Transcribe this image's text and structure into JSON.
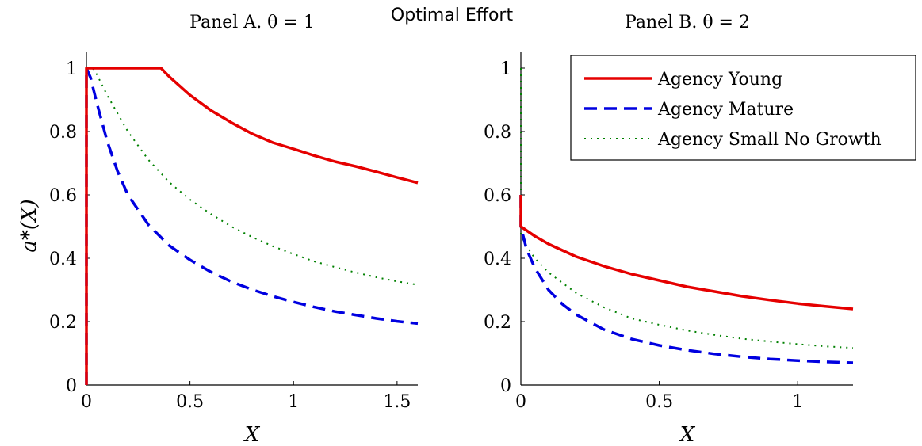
{
  "figure": {
    "title": "Optimal Effort"
  },
  "legend": {
    "entries": [
      {
        "label": "Agency Young",
        "color": "#e50000",
        "style": "solid"
      },
      {
        "label": "Agency Mature",
        "color": "#0000e0",
        "style": "dashed"
      },
      {
        "label": "Agency Small No Growth",
        "color": "#008000",
        "style": "dotted"
      }
    ],
    "placement": "top-right of Panel B"
  },
  "chart_data": [
    {
      "type": "line",
      "title": "Panel A. θ = 1",
      "xlabel": "X",
      "ylabel": "a*(X)",
      "xlim": [
        0,
        1.6
      ],
      "ylim": [
        0,
        1.05
      ],
      "xticks": [
        0,
        0.5,
        1,
        1.5
      ],
      "xtick_labels": [
        "0",
        "0.5",
        "1",
        "1.5"
      ],
      "yticks": [
        0,
        0.2,
        0.4,
        0.6,
        0.8,
        1
      ],
      "ytick_labels": [
        "0",
        "0.2",
        "0.4",
        "0.6",
        "0.8",
        "1"
      ],
      "grid": false,
      "series": [
        {
          "name": "Agency Young",
          "color": "#e50000",
          "style": "solid",
          "x": [
            0,
            0,
            0.36,
            0.4,
            0.5,
            0.6,
            0.7,
            0.8,
            0.9,
            1.0,
            1.1,
            1.2,
            1.3,
            1.4,
            1.5,
            1.6
          ],
          "y": [
            0,
            1,
            1,
            0.973,
            0.915,
            0.867,
            0.828,
            0.793,
            0.765,
            0.745,
            0.724,
            0.705,
            0.69,
            0.673,
            0.655,
            0.638
          ]
        },
        {
          "name": "Agency Mature",
          "color": "#0000e0",
          "style": "dashed",
          "x": [
            0,
            0,
            0.02,
            0.05,
            0.1,
            0.15,
            0.2,
            0.3,
            0.4,
            0.5,
            0.6,
            0.7,
            0.8,
            0.9,
            1.0,
            1.1,
            1.2,
            1.3,
            1.4,
            1.5,
            1.6
          ],
          "y": [
            0,
            1,
            0.97,
            0.89,
            0.77,
            0.675,
            0.6,
            0.505,
            0.44,
            0.395,
            0.357,
            0.326,
            0.301,
            0.28,
            0.262,
            0.246,
            0.232,
            0.221,
            0.21,
            0.201,
            0.194
          ]
        },
        {
          "name": "Agency Small No Growth",
          "color": "#008000",
          "style": "dotted",
          "x": [
            0,
            0,
            0.03,
            0.05,
            0.1,
            0.2,
            0.3,
            0.4,
            0.5,
            0.6,
            0.7,
            0.8,
            0.9,
            1.0,
            1.1,
            1.2,
            1.3,
            1.4,
            1.5,
            1.6
          ],
          "y": [
            0,
            1,
            1,
            0.98,
            0.915,
            0.8,
            0.71,
            0.64,
            0.585,
            0.54,
            0.5,
            0.467,
            0.438,
            0.413,
            0.39,
            0.372,
            0.355,
            0.34,
            0.327,
            0.316
          ]
        }
      ]
    },
    {
      "type": "line",
      "title": "Panel B. θ = 2",
      "xlabel": "X",
      "ylabel": "",
      "xlim": [
        0,
        1.2
      ],
      "ylim": [
        0,
        1.05
      ],
      "xticks": [
        0,
        0.5,
        1
      ],
      "xtick_labels": [
        "0",
        "0.5",
        "1"
      ],
      "yticks": [
        0,
        0.2,
        0.4,
        0.6,
        0.8,
        1
      ],
      "ytick_labels": [
        "0",
        "0.2",
        "0.4",
        "0.6",
        "0.8",
        "1"
      ],
      "grid": false,
      "series": [
        {
          "name": "Agency Young",
          "color": "#e50000",
          "style": "solid",
          "x": [
            0,
            0,
            0.05,
            0.1,
            0.2,
            0.3,
            0.4,
            0.5,
            0.6,
            0.7,
            0.8,
            0.9,
            1.0,
            1.1,
            1.2
          ],
          "y": [
            0.6,
            0.5,
            0.47,
            0.445,
            0.405,
            0.375,
            0.35,
            0.33,
            0.31,
            0.295,
            0.28,
            0.268,
            0.257,
            0.248,
            0.24
          ]
        },
        {
          "name": "Agency Mature",
          "color": "#0000e0",
          "style": "dashed",
          "x": [
            0,
            0,
            0.02,
            0.05,
            0.1,
            0.15,
            0.2,
            0.3,
            0.4,
            0.5,
            0.6,
            0.7,
            0.8,
            0.9,
            1.0,
            1.1,
            1.2
          ],
          "y": [
            0.6,
            0.5,
            0.43,
            0.37,
            0.3,
            0.255,
            0.222,
            0.175,
            0.145,
            0.125,
            0.11,
            0.098,
            0.089,
            0.082,
            0.077,
            0.073,
            0.07
          ]
        },
        {
          "name": "Agency Small No Growth",
          "color": "#008000",
          "style": "dotted",
          "x": [
            0,
            0,
            0.02,
            0.05,
            0.1,
            0.2,
            0.3,
            0.4,
            0.5,
            0.6,
            0.7,
            0.8,
            0.9,
            1.0,
            1.1,
            1.2
          ],
          "y": [
            1.0,
            0.47,
            0.44,
            0.4,
            0.355,
            0.29,
            0.245,
            0.21,
            0.19,
            0.172,
            0.158,
            0.146,
            0.137,
            0.129,
            0.122,
            0.117
          ]
        }
      ]
    }
  ]
}
